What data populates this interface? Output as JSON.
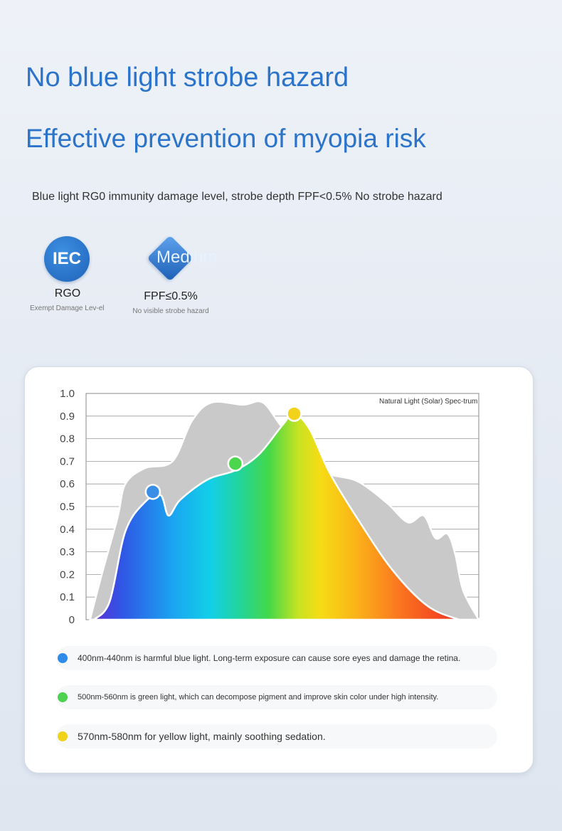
{
  "header": {
    "title_line1": "No blue light strobe hazard",
    "title_line2": "Effective prevention of myopia risk",
    "subtitle": "Blue light RG0 immunity damage level, strobe depth FPF<0.5% No strobe hazard"
  },
  "badges": [
    {
      "logo_text": "IEC",
      "name": "RGO",
      "desc": "Exempt Damage Lev-el",
      "icon": "iec-logo"
    },
    {
      "logo_text": "Medium",
      "name": "FPF≤0.5%",
      "desc": "No visible strobe hazard",
      "icon": "diamond"
    }
  ],
  "chart_data": {
    "type": "area",
    "legend": "Natural Light (Solar) Spec-trum",
    "yticks": [
      "1.0",
      "0.9",
      "0.8",
      "0.7",
      "0.6",
      "0.5",
      "0.4",
      "0.3",
      "0.2",
      "0.1",
      "0"
    ],
    "ylim": [
      0,
      1.0
    ],
    "grid": true,
    "series": [
      {
        "name": "Natural Light (Solar) Spectrum",
        "color": "#c9c9c9",
        "points": [
          [
            0.01,
            0.0
          ],
          [
            0.04,
            0.2
          ],
          [
            0.08,
            0.45
          ],
          [
            0.1,
            0.6
          ],
          [
            0.15,
            0.67
          ],
          [
            0.22,
            0.7
          ],
          [
            0.27,
            0.88
          ],
          [
            0.32,
            0.96
          ],
          [
            0.4,
            0.95
          ],
          [
            0.45,
            0.96
          ],
          [
            0.5,
            0.85
          ],
          [
            0.57,
            0.73
          ],
          [
            0.61,
            0.65
          ],
          [
            0.68,
            0.62
          ],
          [
            0.72,
            0.58
          ],
          [
            0.77,
            0.51
          ],
          [
            0.82,
            0.43
          ],
          [
            0.86,
            0.46
          ],
          [
            0.89,
            0.36
          ],
          [
            0.92,
            0.38
          ],
          [
            0.94,
            0.29
          ],
          [
            0.96,
            0.13
          ],
          [
            1.0,
            0.0
          ]
        ]
      },
      {
        "name": "",
        "color": "spectrum",
        "points": [
          [
            0.02,
            0.0
          ],
          [
            0.06,
            0.08
          ],
          [
            0.1,
            0.39
          ],
          [
            0.15,
            0.52
          ],
          [
            0.19,
            0.55
          ],
          [
            0.21,
            0.46
          ],
          [
            0.24,
            0.53
          ],
          [
            0.31,
            0.62
          ],
          [
            0.38,
            0.66
          ],
          [
            0.44,
            0.73
          ],
          [
            0.5,
            0.86
          ],
          [
            0.53,
            0.91
          ],
          [
            0.57,
            0.84
          ],
          [
            0.62,
            0.65
          ],
          [
            0.69,
            0.45
          ],
          [
            0.78,
            0.22
          ],
          [
            0.87,
            0.06
          ],
          [
            0.95,
            0.0
          ]
        ]
      }
    ],
    "markers": [
      {
        "x": 0.17,
        "y": 0.565,
        "color": "#3a8ee6"
      },
      {
        "x": 0.38,
        "y": 0.69,
        "color": "#4bd64b"
      },
      {
        "x": 0.53,
        "y": 0.91,
        "color": "#f3d21c"
      }
    ]
  },
  "notes": [
    {
      "text": "400nm-440nm is harmful blue light. Long-term exposure can cause sore eyes and damage the retina.",
      "color": "#2f8be8"
    },
    {
      "text": "500nm-560nm is green light, which can decompose pigment and improve skin color under high intensity.",
      "color": "#4fd24f"
    },
    {
      "text": "570nm-580nm for yellow light, mainly soothing sedation.",
      "color": "#f0d21a"
    }
  ]
}
